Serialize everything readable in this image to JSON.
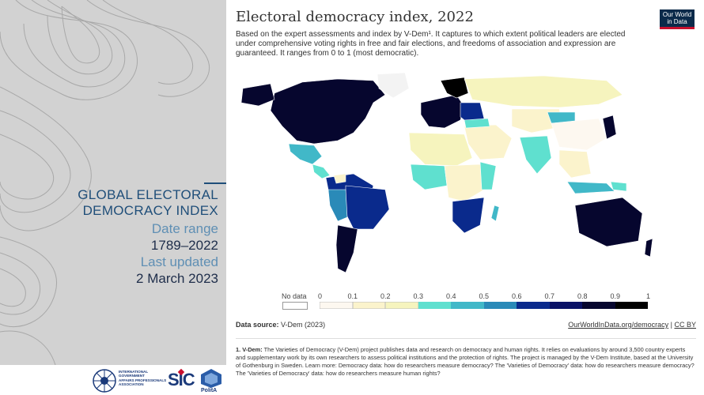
{
  "sidebar": {
    "title_line1": "GLOBAL ELECTORAL",
    "title_line2": "DEMOCRACY INDEX",
    "date_range_label": "Date range",
    "date_range_value": "1789–2022",
    "last_updated_label": "Last updated",
    "last_updated_value": "2 March 2023",
    "logos": {
      "igapa_line1": "INTERNATIONAL",
      "igapa_line2": "GOVERNMENT",
      "igapa_line3": "AFFAIRS PROFESSIONALS",
      "igapa_line4": "ASSOCIATION",
      "sic": "SIC",
      "polita": "PolitA"
    }
  },
  "chart": {
    "title": "Electoral democracy index, 2022",
    "subtitle": "Based on the expert assessments and index by V-Dem¹. It captures to which extent political leaders are elected under comprehensive voting rights in free and fair elections, and freedoms of association and expression are guaranteed. It ranges from 0 to 1 (most democratic).",
    "logo_line1": "Our World",
    "logo_line2": "in Data"
  },
  "legend": {
    "no_data_label": "No data",
    "ticks": [
      "0",
      "0.1",
      "0.2",
      "0.3",
      "0.4",
      "0.5",
      "0.6",
      "0.7",
      "0.8",
      "0.9",
      "1"
    ],
    "colors": [
      "#fdf8f0",
      "#fbf3cc",
      "#f6f4be",
      "#5fe0cf",
      "#41b8c8",
      "#2a8ab8",
      "#0a2a8c",
      "#0a1266",
      "#06062e",
      "#000000"
    ]
  },
  "source": {
    "label": "Data source:",
    "value": "V-Dem (2023)",
    "link1": "OurWorldInData.org/democracy",
    "separator": "|",
    "link2": "CC BY"
  },
  "footnote": {
    "label": "1. V-Dem:",
    "text": "The Varieties of Democracy (V-Dem) project publishes data and research on democracy and human rights. It relies on evaluations by around 3,500 country experts and supplementary work by its own researchers to assess political institutions and the protection of rights. The project is managed by the V-Dem Institute, based at the University of Gothenburg in Sweden. Learn more: Democracy data: how do researchers measure democracy? The 'Varieties of Democracy' data: how do researchers measure democracy? The 'Varieties of Democracy' data: how do researchers measure human rights?"
  }
}
